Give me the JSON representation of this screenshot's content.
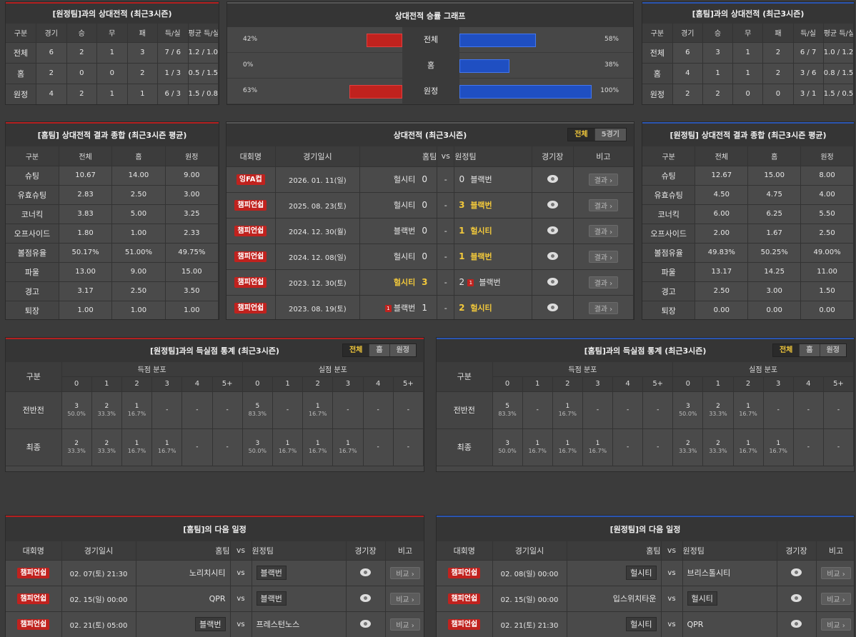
{
  "top_left": {
    "title": "[원정팀]과의 상대전적 (최근3시즌)",
    "headers": [
      "구분",
      "경기",
      "승",
      "무",
      "패",
      "득/실",
      "평균 득/실"
    ],
    "rows": [
      [
        "전체",
        "6",
        "2",
        "1",
        "3",
        "7 / 6",
        "1.2 / 1.0"
      ],
      [
        "홈",
        "2",
        "0",
        "0",
        "2",
        "1 / 3",
        "0.5 / 1.5"
      ],
      [
        "원정",
        "4",
        "2",
        "1",
        "1",
        "6 / 3",
        "1.5 / 0.8"
      ]
    ]
  },
  "graph": {
    "title": "상대전적 승률 그래프",
    "rows": [
      {
        "label": "전체",
        "left": "42%",
        "right": "58%",
        "left_value": 42,
        "right_value": 58
      },
      {
        "label": "홈",
        "left": "0%",
        "right": "38%",
        "left_value": 0,
        "right_value": 38
      },
      {
        "label": "원정",
        "left": "63%",
        "right": "100%",
        "left_value": 63,
        "right_value": 100
      }
    ]
  },
  "top_right": {
    "title": "[홈팀]과의 상대전적 (최근3시즌)",
    "headers": [
      "구분",
      "경기",
      "승",
      "무",
      "패",
      "득/실",
      "평균 득/실"
    ],
    "rows": [
      [
        "전체",
        "6",
        "3",
        "1",
        "2",
        "6 / 7",
        "1.0 / 1.2"
      ],
      [
        "홈",
        "4",
        "1",
        "1",
        "2",
        "3 / 6",
        "0.8 / 1.5"
      ],
      [
        "원정",
        "2",
        "2",
        "0",
        "0",
        "3 / 1",
        "1.5 / 0.5"
      ]
    ]
  },
  "summary_left": {
    "title": "[홈팀] 상대전적 결과 종합 (최근3시즌 평균)",
    "headers": [
      "구분",
      "전체",
      "홈",
      "원정"
    ],
    "rows": [
      [
        "슈팅",
        "10.67",
        "14.00",
        "9.00"
      ],
      [
        "유효슈팅",
        "2.83",
        "2.50",
        "3.00"
      ],
      [
        "코너킥",
        "3.83",
        "5.00",
        "3.25"
      ],
      [
        "오프사이드",
        "1.80",
        "1.00",
        "2.33"
      ],
      [
        "볼점유율",
        "50.17%",
        "51.00%",
        "49.75%"
      ],
      [
        "파울",
        "13.00",
        "9.00",
        "15.00"
      ],
      [
        "경고",
        "3.17",
        "2.50",
        "3.50"
      ],
      [
        "퇴장",
        "1.00",
        "1.00",
        "1.00"
      ]
    ]
  },
  "summary_right": {
    "title": "[원정팀] 상대전적 결과 종합 (최근3시즌 평균)",
    "headers": [
      "구분",
      "전체",
      "홈",
      "원정"
    ],
    "rows": [
      [
        "슈팅",
        "12.67",
        "15.00",
        "8.00"
      ],
      [
        "유효슈팅",
        "4.50",
        "4.75",
        "4.00"
      ],
      [
        "코너킥",
        "6.00",
        "6.25",
        "5.50"
      ],
      [
        "오프사이드",
        "2.00",
        "1.67",
        "2.50"
      ],
      [
        "볼점유율",
        "49.83%",
        "50.25%",
        "49.00%"
      ],
      [
        "파울",
        "13.17",
        "14.25",
        "11.00"
      ],
      [
        "경고",
        "2.50",
        "3.00",
        "1.50"
      ],
      [
        "퇴장",
        "0.00",
        "0.00",
        "0.00"
      ]
    ]
  },
  "h2h": {
    "title": "상대전적 (최근3시즌)",
    "tabs": [
      "전체",
      "5경기"
    ],
    "headers": {
      "league": "대회명",
      "date": "경기일시",
      "home": "홈팀",
      "vs": "vs",
      "away": "원정팀",
      "stadium": "경기장",
      "note": "비고"
    },
    "button_label": "결과 ›",
    "matches": [
      {
        "league": "잉FA컵",
        "date": "2026. 01. 11(일)",
        "home": "헐시티",
        "hs": "0",
        "as": "0",
        "away": "블랙번",
        "home_win": false,
        "away_win": false,
        "home_card": "",
        "away_card": ""
      },
      {
        "league": "챔피언쉽",
        "date": "2025. 08. 23(토)",
        "home": "헐시티",
        "hs": "0",
        "as": "3",
        "away": "블랙번",
        "home_win": false,
        "away_win": true,
        "home_card": "",
        "away_card": ""
      },
      {
        "league": "챔피언쉽",
        "date": "2024. 12. 30(월)",
        "home": "블랙번",
        "hs": "0",
        "as": "1",
        "away": "헐시티",
        "home_win": false,
        "away_win": true,
        "home_card": "",
        "away_card": ""
      },
      {
        "league": "챔피언쉽",
        "date": "2024. 12. 08(일)",
        "home": "헐시티",
        "hs": "0",
        "as": "1",
        "away": "블랙번",
        "home_win": false,
        "away_win": true,
        "home_card": "",
        "away_card": ""
      },
      {
        "league": "챔피언쉽",
        "date": "2023. 12. 30(토)",
        "home": "헐시티",
        "hs": "3",
        "as": "2",
        "away": "블랙번",
        "home_win": true,
        "away_win": false,
        "home_card": "",
        "away_card": "1"
      },
      {
        "league": "챔피언쉽",
        "date": "2023. 08. 19(토)",
        "home": "블랙번",
        "hs": "1",
        "as": "2",
        "away": "헐시티",
        "home_win": false,
        "away_win": true,
        "home_card": "1",
        "away_card": ""
      }
    ]
  },
  "goals_left": {
    "title": "[원정팀]과의 득실점 통계 (최근3시즌)",
    "tabs": [
      "전체",
      "홈",
      "원정"
    ],
    "col_label": "구분",
    "group1": "득점 분포",
    "group2": "실점 분포",
    "buckets": [
      "0",
      "1",
      "2",
      "3",
      "4",
      "5+"
    ],
    "rows": [
      {
        "label": "전반전",
        "cells": [
          [
            "3",
            "50.0%"
          ],
          [
            "2",
            "33.3%"
          ],
          [
            "1",
            "16.7%"
          ],
          [
            "-",
            ""
          ],
          [
            "-",
            ""
          ],
          [
            "-",
            ""
          ],
          [
            "5",
            "83.3%"
          ],
          [
            "-",
            ""
          ],
          [
            "1",
            "16.7%"
          ],
          [
            "-",
            ""
          ],
          [
            "-",
            ""
          ],
          [
            "-",
            ""
          ]
        ]
      },
      {
        "label": "최종",
        "cells": [
          [
            "2",
            "33.3%"
          ],
          [
            "2",
            "33.3%"
          ],
          [
            "1",
            "16.7%"
          ],
          [
            "1",
            "16.7%"
          ],
          [
            "-",
            ""
          ],
          [
            "-",
            ""
          ],
          [
            "3",
            "50.0%"
          ],
          [
            "1",
            "16.7%"
          ],
          [
            "1",
            "16.7%"
          ],
          [
            "1",
            "16.7%"
          ],
          [
            "-",
            ""
          ],
          [
            "-",
            ""
          ]
        ]
      }
    ]
  },
  "goals_right": {
    "title": "[홈팀]과의 득실점 통계 (최근3시즌)",
    "tabs": [
      "전체",
      "홈",
      "원정"
    ],
    "col_label": "구분",
    "group1": "득점 분포",
    "group2": "실점 분포",
    "buckets": [
      "0",
      "1",
      "2",
      "3",
      "4",
      "5+"
    ],
    "rows": [
      {
        "label": "전반전",
        "cells": [
          [
            "5",
            "83.3%"
          ],
          [
            "-",
            ""
          ],
          [
            "1",
            "16.7%"
          ],
          [
            "-",
            ""
          ],
          [
            "-",
            ""
          ],
          [
            "-",
            ""
          ],
          [
            "3",
            "50.0%"
          ],
          [
            "2",
            "33.3%"
          ],
          [
            "1",
            "16.7%"
          ],
          [
            "-",
            ""
          ],
          [
            "-",
            ""
          ],
          [
            "-",
            ""
          ]
        ]
      },
      {
        "label": "최종",
        "cells": [
          [
            "3",
            "50.0%"
          ],
          [
            "1",
            "16.7%"
          ],
          [
            "1",
            "16.7%"
          ],
          [
            "1",
            "16.7%"
          ],
          [
            "-",
            ""
          ],
          [
            "-",
            ""
          ],
          [
            "2",
            "33.3%"
          ],
          [
            "2",
            "33.3%"
          ],
          [
            "1",
            "16.7%"
          ],
          [
            "1",
            "16.7%"
          ],
          [
            "-",
            ""
          ],
          [
            "-",
            ""
          ]
        ]
      }
    ]
  },
  "next_left": {
    "title": "[홈팀]의 다음 일정",
    "headers": {
      "league": "대회명",
      "date": "경기일시",
      "home": "홈팀",
      "vs": "vs",
      "away": "원정팀",
      "stadium": "경기장",
      "note": "비고"
    },
    "button_label": "비교 ›",
    "matches": [
      {
        "league": "챔피언쉽",
        "date": "02. 07(토) 21:30",
        "home": "노리치시티",
        "away": "블랙번",
        "home_box": false,
        "away_box": true
      },
      {
        "league": "챔피언쉽",
        "date": "02. 15(일) 00:00",
        "home": "QPR",
        "away": "블랙번",
        "home_box": false,
        "away_box": true
      },
      {
        "league": "챔피언쉽",
        "date": "02. 21(토) 05:00",
        "home": "블랙번",
        "away": "프레스턴노스",
        "home_box": true,
        "away_box": false
      }
    ]
  },
  "next_right": {
    "title": "[원정팀]의 다음 일정",
    "headers": {
      "league": "대회명",
      "date": "경기일시",
      "home": "홈팀",
      "vs": "vs",
      "away": "원정팀",
      "stadium": "경기장",
      "note": "비고"
    },
    "button_label": "비교 ›",
    "matches": [
      {
        "league": "챔피언쉽",
        "date": "02. 08(일) 00:00",
        "home": "헐시티",
        "away": "브리스톨시티",
        "home_box": true,
        "away_box": false
      },
      {
        "league": "챔피언쉽",
        "date": "02. 15(일) 00:00",
        "home": "입스위치타운",
        "away": "헐시티",
        "home_box": false,
        "away_box": true
      },
      {
        "league": "챔피언쉽",
        "date": "02. 21(토) 21:30",
        "home": "헐시티",
        "away": "QPR",
        "home_box": true,
        "away_box": false
      }
    ]
  }
}
